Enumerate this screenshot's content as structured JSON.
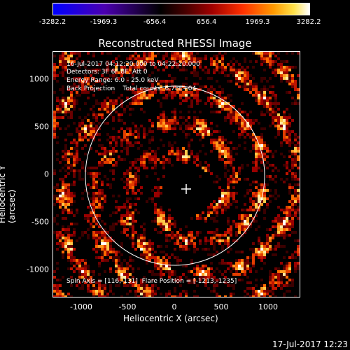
{
  "colorbar": {
    "labels": [
      "-3282.2",
      "-1969.3",
      "-656.4",
      "656.4",
      "1969.3",
      "3282.2"
    ]
  },
  "title": "Reconstructed RHESSI Image",
  "info_lines": [
    "16-Jul-2017 04:12:20.000 to 04:22:20.000",
    "Detectors: 3F 6F 8F, Att 0",
    "Energy Range: 6.0 - 25.0 keV",
    "Back Projection    Total counts: 6.78E+04"
  ],
  "footer_line": "Spin Axis = [116,-131]  Flare Position = [-1213,-1235]",
  "axes": {
    "x_label": "Heliocentric X (arcsec)",
    "y_label": "Heliocentric Y (arcsec)",
    "x_ticks": [
      "-1000",
      "-500",
      "0",
      "500",
      "1000"
    ],
    "y_ticks": [
      "1000",
      "500",
      "0",
      "-500",
      "-1000"
    ]
  },
  "timestamp": "17-Jul-2017 12:23"
}
